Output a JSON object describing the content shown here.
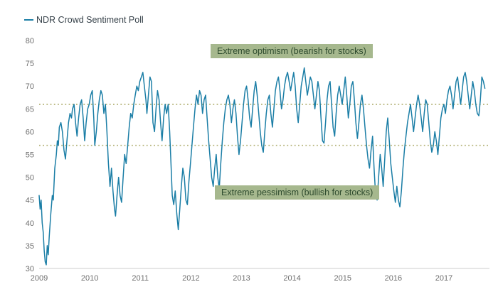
{
  "legend": {
    "label": "NDR Crowd Sentiment Poll"
  },
  "annotations": {
    "optimism": {
      "text": "Extreme optimism (bearish for stocks)"
    },
    "pessimism": {
      "text": "Extreme pessimism (bullish for stocks)"
    }
  },
  "chart_data": {
    "type": "line",
    "title": "",
    "xlabel": "",
    "ylabel": "",
    "legend_position": "top-left",
    "grid": false,
    "series_name": "NDR Crowd Sentiment Poll",
    "xlim": [
      2009,
      2017.9
    ],
    "ylim": [
      30,
      80
    ],
    "y_ticks": [
      30,
      35,
      40,
      45,
      50,
      55,
      60,
      65,
      70,
      75,
      80
    ],
    "x_ticks": [
      2009,
      2010,
      2011,
      2012,
      2013,
      2014,
      2015,
      2016,
      2017
    ],
    "thresholds": {
      "optimism": 66,
      "pessimism": 57
    },
    "colors": {
      "line": "#1b7ea6",
      "threshold": "#b1af72",
      "annotation_bg": "#a6b88e",
      "annotation_text": "#2e4b2e",
      "tick": "#6e6e6e",
      "axis": "#cccccc"
    },
    "points": [
      [
        2009.0,
        46
      ],
      [
        2009.02,
        43
      ],
      [
        2009.04,
        45
      ],
      [
        2009.06,
        40
      ],
      [
        2009.08,
        38
      ],
      [
        2009.1,
        34
      ],
      [
        2009.12,
        31.5
      ],
      [
        2009.14,
        30.8
      ],
      [
        2009.16,
        35
      ],
      [
        2009.18,
        33
      ],
      [
        2009.2,
        37
      ],
      [
        2009.23,
        42
      ],
      [
        2009.26,
        46
      ],
      [
        2009.28,
        45
      ],
      [
        2009.31,
        52
      ],
      [
        2009.34,
        55
      ],
      [
        2009.36,
        58
      ],
      [
        2009.38,
        57
      ],
      [
        2009.4,
        61
      ],
      [
        2009.43,
        62
      ],
      [
        2009.46,
        60
      ],
      [
        2009.49,
        56
      ],
      [
        2009.52,
        54
      ],
      [
        2009.55,
        58
      ],
      [
        2009.58,
        62
      ],
      [
        2009.61,
        64
      ],
      [
        2009.64,
        63
      ],
      [
        2009.66,
        65
      ],
      [
        2009.69,
        66
      ],
      [
        2009.72,
        62
      ],
      [
        2009.75,
        59
      ],
      [
        2009.78,
        63
      ],
      [
        2009.81,
        66
      ],
      [
        2009.84,
        67
      ],
      [
        2009.87,
        63
      ],
      [
        2009.9,
        58
      ],
      [
        2009.93,
        62
      ],
      [
        2009.96,
        65
      ],
      [
        2009.99,
        66
      ],
      [
        2010.02,
        68
      ],
      [
        2010.05,
        69
      ],
      [
        2010.08,
        63
      ],
      [
        2010.1,
        57
      ],
      [
        2010.13,
        60
      ],
      [
        2010.16,
        64
      ],
      [
        2010.19,
        67
      ],
      [
        2010.22,
        69
      ],
      [
        2010.25,
        68
      ],
      [
        2010.28,
        64
      ],
      [
        2010.31,
        66
      ],
      [
        2010.34,
        60
      ],
      [
        2010.37,
        53
      ],
      [
        2010.4,
        48
      ],
      [
        2010.43,
        52
      ],
      [
        2010.46,
        47
      ],
      [
        2010.49,
        43
      ],
      [
        2010.51,
        41.5
      ],
      [
        2010.54,
        46
      ],
      [
        2010.57,
        50
      ],
      [
        2010.6,
        46
      ],
      [
        2010.63,
        44.5
      ],
      [
        2010.66,
        50
      ],
      [
        2010.69,
        55
      ],
      [
        2010.72,
        53
      ],
      [
        2010.75,
        57
      ],
      [
        2010.78,
        61
      ],
      [
        2010.81,
        64
      ],
      [
        2010.84,
        63
      ],
      [
        2010.87,
        66
      ],
      [
        2010.9,
        68
      ],
      [
        2010.93,
        70
      ],
      [
        2010.96,
        69
      ],
      [
        2010.99,
        71
      ],
      [
        2011.02,
        72
      ],
      [
        2011.05,
        73
      ],
      [
        2011.08,
        70
      ],
      [
        2011.11,
        67
      ],
      [
        2011.13,
        64
      ],
      [
        2011.16,
        68
      ],
      [
        2011.19,
        72
      ],
      [
        2011.22,
        71
      ],
      [
        2011.25,
        62
      ],
      [
        2011.28,
        60
      ],
      [
        2011.31,
        65
      ],
      [
        2011.34,
        69
      ],
      [
        2011.37,
        67
      ],
      [
        2011.4,
        62
      ],
      [
        2011.43,
        58
      ],
      [
        2011.46,
        63
      ],
      [
        2011.49,
        66
      ],
      [
        2011.52,
        64
      ],
      [
        2011.55,
        66
      ],
      [
        2011.58,
        60
      ],
      [
        2011.61,
        52
      ],
      [
        2011.63,
        46
      ],
      [
        2011.66,
        44
      ],
      [
        2011.69,
        47
      ],
      [
        2011.72,
        42
      ],
      [
        2011.75,
        38.5
      ],
      [
        2011.78,
        43
      ],
      [
        2011.81,
        48
      ],
      [
        2011.84,
        52
      ],
      [
        2011.87,
        50
      ],
      [
        2011.9,
        45
      ],
      [
        2011.93,
        44
      ],
      [
        2011.96,
        49
      ],
      [
        2011.99,
        53
      ],
      [
        2012.02,
        57
      ],
      [
        2012.05,
        61
      ],
      [
        2012.08,
        65
      ],
      [
        2012.11,
        68
      ],
      [
        2012.14,
        66
      ],
      [
        2012.17,
        69
      ],
      [
        2012.2,
        68
      ],
      [
        2012.23,
        64
      ],
      [
        2012.26,
        67
      ],
      [
        2012.29,
        68
      ],
      [
        2012.32,
        63
      ],
      [
        2012.35,
        58
      ],
      [
        2012.38,
        54
      ],
      [
        2012.41,
        50
      ],
      [
        2012.44,
        48
      ],
      [
        2012.47,
        52
      ],
      [
        2012.5,
        55
      ],
      [
        2012.53,
        50
      ],
      [
        2012.56,
        47.5
      ],
      [
        2012.59,
        53
      ],
      [
        2012.62,
        58
      ],
      [
        2012.65,
        62
      ],
      [
        2012.68,
        65
      ],
      [
        2012.71,
        67
      ],
      [
        2012.74,
        68
      ],
      [
        2012.77,
        66
      ],
      [
        2012.8,
        62
      ],
      [
        2012.83,
        65
      ],
      [
        2012.86,
        67
      ],
      [
        2012.89,
        64
      ],
      [
        2012.92,
        59
      ],
      [
        2012.95,
        55
      ],
      [
        2012.98,
        58
      ],
      [
        2013.01,
        62
      ],
      [
        2013.04,
        66
      ],
      [
        2013.07,
        69
      ],
      [
        2013.1,
        70
      ],
      [
        2013.13,
        67
      ],
      [
        2013.16,
        63
      ],
      [
        2013.19,
        61
      ],
      [
        2013.22,
        65
      ],
      [
        2013.25,
        69
      ],
      [
        2013.28,
        71
      ],
      [
        2013.31,
        68
      ],
      [
        2013.34,
        64
      ],
      [
        2013.37,
        60
      ],
      [
        2013.4,
        57
      ],
      [
        2013.43,
        55.5
      ],
      [
        2013.46,
        60
      ],
      [
        2013.49,
        64
      ],
      [
        2013.52,
        67
      ],
      [
        2013.55,
        68
      ],
      [
        2013.58,
        64
      ],
      [
        2013.61,
        61
      ],
      [
        2013.64,
        65
      ],
      [
        2013.67,
        69
      ],
      [
        2013.7,
        71
      ],
      [
        2013.73,
        72
      ],
      [
        2013.76,
        69
      ],
      [
        2013.79,
        65
      ],
      [
        2013.82,
        67
      ],
      [
        2013.85,
        70
      ],
      [
        2013.88,
        72
      ],
      [
        2013.91,
        73
      ],
      [
        2013.94,
        71
      ],
      [
        2013.97,
        69
      ],
      [
        2014.0,
        71
      ],
      [
        2014.03,
        73
      ],
      [
        2014.06,
        70
      ],
      [
        2014.09,
        65
      ],
      [
        2014.12,
        62
      ],
      [
        2014.15,
        66
      ],
      [
        2014.18,
        70
      ],
      [
        2014.21,
        72
      ],
      [
        2014.24,
        74
      ],
      [
        2014.27,
        71
      ],
      [
        2014.3,
        68
      ],
      [
        2014.33,
        70
      ],
      [
        2014.36,
        72
      ],
      [
        2014.39,
        71
      ],
      [
        2014.42,
        68
      ],
      [
        2014.45,
        65
      ],
      [
        2014.48,
        68
      ],
      [
        2014.51,
        71
      ],
      [
        2014.54,
        69
      ],
      [
        2014.57,
        63
      ],
      [
        2014.6,
        58
      ],
      [
        2014.63,
        57.5
      ],
      [
        2014.66,
        62
      ],
      [
        2014.69,
        67
      ],
      [
        2014.72,
        70
      ],
      [
        2014.75,
        71
      ],
      [
        2014.78,
        66
      ],
      [
        2014.81,
        61
      ],
      [
        2014.84,
        59
      ],
      [
        2014.87,
        64
      ],
      [
        2014.9,
        68
      ],
      [
        2014.93,
        70
      ],
      [
        2014.96,
        68
      ],
      [
        2014.99,
        66
      ],
      [
        2015.02,
        69
      ],
      [
        2015.05,
        72
      ],
      [
        2015.08,
        68
      ],
      [
        2015.11,
        63
      ],
      [
        2015.14,
        66
      ],
      [
        2015.17,
        70
      ],
      [
        2015.2,
        71
      ],
      [
        2015.23,
        67
      ],
      [
        2015.26,
        62
      ],
      [
        2015.29,
        58.5
      ],
      [
        2015.32,
        62
      ],
      [
        2015.35,
        66
      ],
      [
        2015.38,
        68
      ],
      [
        2015.41,
        65
      ],
      [
        2015.44,
        61
      ],
      [
        2015.47,
        57
      ],
      [
        2015.5,
        54
      ],
      [
        2015.53,
        52
      ],
      [
        2015.56,
        56
      ],
      [
        2015.59,
        59
      ],
      [
        2015.62,
        52
      ],
      [
        2015.65,
        46
      ],
      [
        2015.68,
        45
      ],
      [
        2015.71,
        50
      ],
      [
        2015.74,
        55
      ],
      [
        2015.77,
        52
      ],
      [
        2015.8,
        48
      ],
      [
        2015.83,
        54
      ],
      [
        2015.86,
        60
      ],
      [
        2015.89,
        63
      ],
      [
        2015.92,
        58
      ],
      [
        2015.95,
        53
      ],
      [
        2015.98,
        50
      ],
      [
        2016.01,
        47
      ],
      [
        2016.04,
        44.5
      ],
      [
        2016.07,
        48
      ],
      [
        2016.1,
        45
      ],
      [
        2016.13,
        43.5
      ],
      [
        2016.16,
        47
      ],
      [
        2016.19,
        52
      ],
      [
        2016.22,
        56
      ],
      [
        2016.25,
        59
      ],
      [
        2016.28,
        62
      ],
      [
        2016.31,
        64
      ],
      [
        2016.34,
        66
      ],
      [
        2016.37,
        63
      ],
      [
        2016.4,
        60
      ],
      [
        2016.43,
        63
      ],
      [
        2016.46,
        66
      ],
      [
        2016.49,
        68
      ],
      [
        2016.52,
        66
      ],
      [
        2016.55,
        63
      ],
      [
        2016.58,
        60
      ],
      [
        2016.61,
        64
      ],
      [
        2016.64,
        67
      ],
      [
        2016.67,
        66
      ],
      [
        2016.7,
        62
      ],
      [
        2016.73,
        58
      ],
      [
        2016.76,
        55.5
      ],
      [
        2016.79,
        57
      ],
      [
        2016.82,
        60
      ],
      [
        2016.85,
        58
      ],
      [
        2016.88,
        55
      ],
      [
        2016.91,
        59
      ],
      [
        2016.94,
        63
      ],
      [
        2016.97,
        65
      ],
      [
        2017.0,
        66
      ],
      [
        2017.03,
        64
      ],
      [
        2017.06,
        67
      ],
      [
        2017.09,
        69
      ],
      [
        2017.12,
        70
      ],
      [
        2017.15,
        68
      ],
      [
        2017.18,
        65
      ],
      [
        2017.21,
        68
      ],
      [
        2017.24,
        71
      ],
      [
        2017.27,
        72
      ],
      [
        2017.3,
        69
      ],
      [
        2017.33,
        66
      ],
      [
        2017.36,
        69
      ],
      [
        2017.39,
        72
      ],
      [
        2017.42,
        73
      ],
      [
        2017.45,
        71
      ],
      [
        2017.48,
        68
      ],
      [
        2017.51,
        65
      ],
      [
        2017.54,
        68
      ],
      [
        2017.57,
        71
      ],
      [
        2017.6,
        69
      ],
      [
        2017.63,
        66
      ],
      [
        2017.66,
        64
      ],
      [
        2017.69,
        63.5
      ],
      [
        2017.72,
        67
      ],
      [
        2017.75,
        72
      ],
      [
        2017.78,
        71
      ],
      [
        2017.81,
        69.5
      ]
    ]
  }
}
